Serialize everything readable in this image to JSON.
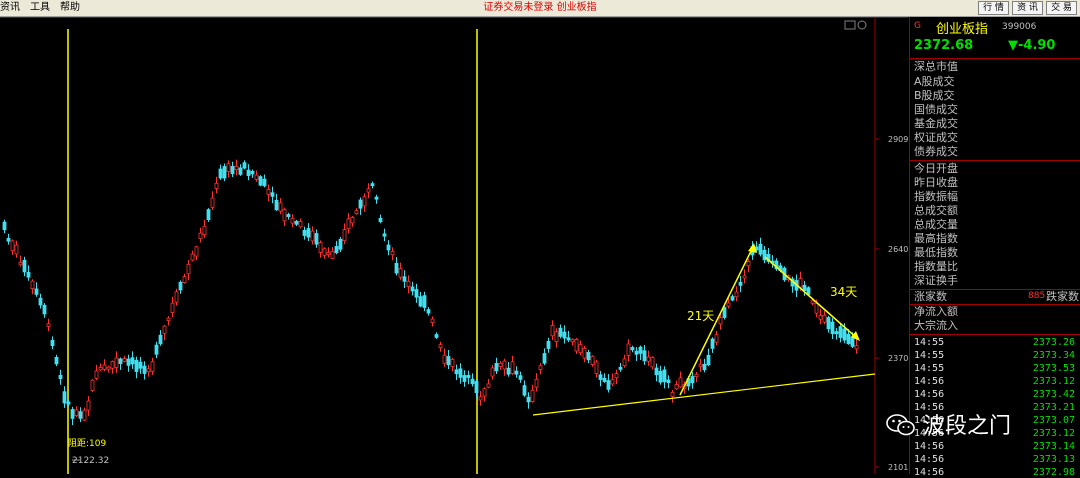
{
  "menu": {
    "items": [
      "资讯",
      "工具",
      "帮助"
    ],
    "center_text": "证券交易未登录   创业板指",
    "right_buttons": [
      "行 情",
      "资 讯",
      "交 易"
    ]
  },
  "chart": {
    "price_ticks": [
      "2909",
      "2640",
      "2370",
      "2101"
    ],
    "annotations": {
      "label_21": "21天",
      "label_34": "34天",
      "low_label": "阻距:109",
      "low_value": "2122.32",
      "corner_marker": "G"
    },
    "colors": {
      "up": "#ff3030",
      "down": "#40e0f0",
      "annotation": "#ffff00",
      "vline": "#ffff00"
    }
  },
  "panel": {
    "title": "创业板指",
    "code": "399006",
    "last": "2372.68",
    "change": "▼-4.90",
    "rows_a": [
      "深总市值",
      "A股成交",
      "B股成交",
      "国债成交",
      "基金成交",
      "权证成交",
      "债券成交"
    ],
    "rows_b": [
      "今日开盘",
      "昨日收盘",
      "指数振幅",
      "总成交额",
      "总成交量",
      "最高指数",
      "最低指数",
      "指数量比",
      "深证换手"
    ],
    "breadth": {
      "label": "涨家数",
      "value": "885",
      "label2": "跌家数"
    },
    "rows_c": [
      "净流入额",
      "大宗流入"
    ],
    "ticks": [
      {
        "time": "14:55",
        "value": "2373.26"
      },
      {
        "time": "14:55",
        "value": "2373.34"
      },
      {
        "time": "14:55",
        "value": "2373.53"
      },
      {
        "time": "14:56",
        "value": "2373.12"
      },
      {
        "time": "14:56",
        "value": "2373.42"
      },
      {
        "time": "14:56",
        "value": "2373.21"
      },
      {
        "time": "14:56",
        "value": "2373.07"
      },
      {
        "time": "14:56",
        "value": "2373.12"
      },
      {
        "time": "14:56",
        "value": "2373.14"
      },
      {
        "time": "14:56",
        "value": "2373.13"
      },
      {
        "time": "14:56",
        "value": "2372.98"
      }
    ]
  },
  "watermark": "波段之门"
}
